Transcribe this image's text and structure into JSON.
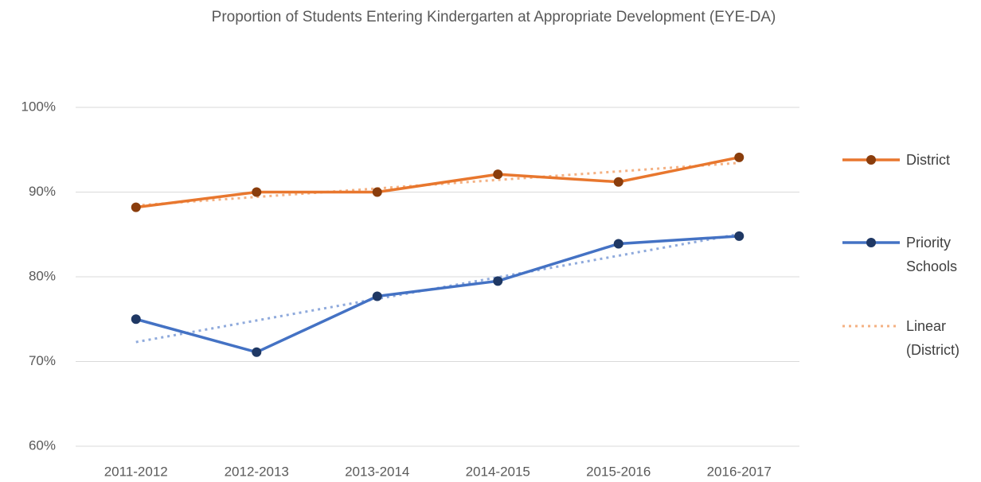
{
  "chart_data": {
    "type": "line",
    "title": "Proportion of Students Entering Kindergarten at Appropriate Development (EYE-DA)",
    "categories": [
      "2011-2012",
      "2012-2013",
      "2013-2014",
      "2014-2015",
      "2015-2016",
      "2016-2017"
    ],
    "series": [
      {
        "name": "District",
        "color": "#e8772e",
        "marker_color": "#8a3d0c",
        "trendline": "linear",
        "trendline_color": "#f4b183",
        "trendline_label": "Linear (District)",
        "values": [
          88.2,
          90.0,
          90.0,
          92.1,
          91.2,
          94.1
        ]
      },
      {
        "name": "Priority Schools",
        "color": "#4472c4",
        "marker_color": "#1f3864",
        "trendline": "linear",
        "trendline_color": "#8faadc",
        "values": [
          75.0,
          71.1,
          77.7,
          79.5,
          83.9,
          84.8
        ]
      }
    ],
    "ylim": [
      60,
      100
    ],
    "yticks": [
      {
        "value": 60,
        "label": "60%"
      },
      {
        "value": 70,
        "label": "70%"
      },
      {
        "value": 80,
        "label": "80%"
      },
      {
        "value": 90,
        "label": "90%"
      },
      {
        "value": 100,
        "label": "100%"
      }
    ],
    "grid": true,
    "legend": "right"
  }
}
